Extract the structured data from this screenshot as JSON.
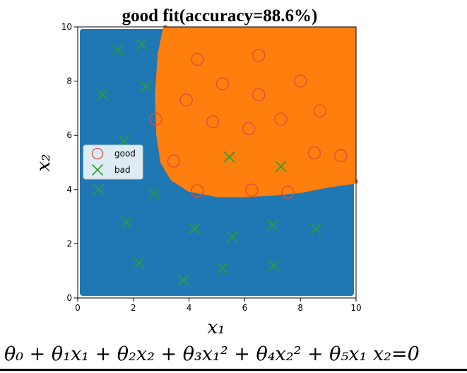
{
  "chart_data": {
    "type": "scatter",
    "title": "good fit(accuracy=88.6%)",
    "xlabel": "x₁",
    "ylabel": "x₂",
    "xlim": [
      0,
      10
    ],
    "ylim": [
      0,
      10
    ],
    "x_ticks": [
      "0",
      "2",
      "4",
      "6",
      "8",
      "10"
    ],
    "y_ticks": [
      "0",
      "2",
      "4",
      "6",
      "8",
      "10"
    ],
    "grid": false,
    "legend_position": "center-left",
    "region_colors": {
      "bad": "#1f77b4",
      "good": "#ff7f0e"
    },
    "decision_boundary": [
      [
        3.15,
        10.0
      ],
      [
        2.95,
        9.0
      ],
      [
        2.85,
        7.5
      ],
      [
        2.9,
        6.0
      ],
      [
        3.05,
        5.0
      ],
      [
        3.4,
        4.4
      ],
      [
        4.0,
        4.0
      ],
      [
        5.0,
        3.8
      ],
      [
        6.0,
        3.8
      ],
      [
        7.0,
        3.85
      ],
      [
        8.0,
        3.95
      ],
      [
        9.0,
        4.15
      ],
      [
        10.0,
        4.3
      ]
    ],
    "series": [
      {
        "name": "good",
        "marker": "circle",
        "color": "#e84a3a",
        "points": [
          [
            4.3,
            8.8
          ],
          [
            6.5,
            8.95
          ],
          [
            5.2,
            7.9
          ],
          [
            8.0,
            8.0
          ],
          [
            3.9,
            7.3
          ],
          [
            6.5,
            7.5
          ],
          [
            2.8,
            6.6
          ],
          [
            4.85,
            6.5
          ],
          [
            6.15,
            6.25
          ],
          [
            7.3,
            6.6
          ],
          [
            8.7,
            6.9
          ],
          [
            3.45,
            5.05
          ],
          [
            8.5,
            5.35
          ],
          [
            9.45,
            5.25
          ],
          [
            4.3,
            3.95
          ],
          [
            6.25,
            3.98
          ],
          [
            7.55,
            3.9
          ]
        ]
      },
      {
        "name": "bad",
        "marker": "x",
        "color": "#2ca02c",
        "points": [
          [
            1.45,
            9.15
          ],
          [
            2.3,
            9.35
          ],
          [
            0.9,
            7.5
          ],
          [
            2.45,
            7.8
          ],
          [
            1.65,
            5.8
          ],
          [
            5.45,
            5.2
          ],
          [
            7.3,
            4.85
          ],
          [
            0.75,
            4.0
          ],
          [
            2.75,
            3.85
          ],
          [
            1.75,
            2.8
          ],
          [
            4.2,
            2.55
          ],
          [
            5.55,
            2.25
          ],
          [
            7.0,
            2.7
          ],
          [
            8.55,
            2.55
          ],
          [
            2.2,
            1.3
          ],
          [
            5.2,
            1.1
          ],
          [
            7.05,
            1.2
          ],
          [
            3.8,
            0.65
          ]
        ]
      }
    ]
  },
  "formula": "θ₀ + θ₁x₁ + θ₂x₂ + θ₃x₁² + θ₄x₂² + θ₅x₁ x₂=0"
}
